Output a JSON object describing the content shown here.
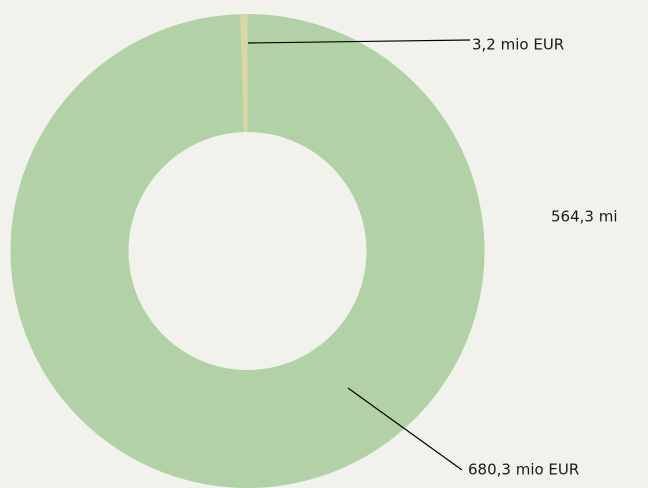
{
  "chart_data": {
    "type": "donut",
    "values": [
      3.2,
      680.3
    ],
    "value_labels": [
      "3,2 mio EUR",
      "680,3 mio EUR"
    ],
    "colors": [
      "#dcd6a2",
      "#b3d1a6"
    ],
    "annotations": [
      "564,3 mi"
    ]
  }
}
